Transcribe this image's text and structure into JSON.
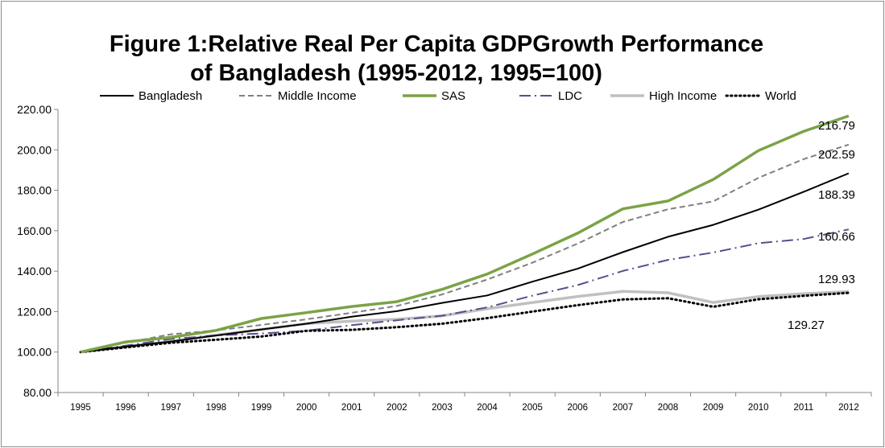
{
  "chart_data": {
    "type": "line",
    "title_lines": [
      "Figure 1:Relative Real Per Capita GDPGrowth Performance",
      "of Bangladesh (1995-2012, 1995=100)"
    ],
    "categories": [
      "1995",
      "1996",
      "1997",
      "1998",
      "1999",
      "2000",
      "2001",
      "2002",
      "2003",
      "2004",
      "2005",
      "2006",
      "2007",
      "2008",
      "2009",
      "2010",
      "2011",
      "2012"
    ],
    "ylim": [
      80,
      220
    ],
    "yticks": [
      "80.00",
      "100.00",
      "120.00",
      "140.00",
      "160.00",
      "180.00",
      "200.00",
      "220.00"
    ],
    "legend_position": "top",
    "grid": false,
    "series": [
      {
        "name": "Bangladesh",
        "color": "#000000",
        "style": "solid",
        "values": [
          100,
          102.7,
          105.2,
          108.2,
          111.2,
          114.0,
          117.5,
          120.2,
          124.3,
          128.0,
          134.8,
          141.2,
          149.4,
          157.0,
          162.9,
          170.4,
          179.2,
          188.39
        ]
      },
      {
        "name": "Middle Income",
        "color": "#808080",
        "style": "dash",
        "values": [
          100,
          104.6,
          108.8,
          110.7,
          113.4,
          116.2,
          119.4,
          122.8,
          128.5,
          135.9,
          144.2,
          153.6,
          164.3,
          170.6,
          174.5,
          186.1,
          195.4,
          202.59
        ]
      },
      {
        "name": "SAS",
        "color": "#7ba346",
        "style": "thick",
        "values": [
          100,
          105.0,
          107.3,
          110.7,
          116.6,
          119.5,
          122.5,
          124.9,
          131.0,
          138.6,
          148.5,
          158.8,
          170.8,
          174.7,
          185.3,
          199.6,
          209.1,
          216.79
        ]
      },
      {
        "name": "LDC",
        "color": "#5f4b8b",
        "style": "dashdot",
        "values": [
          100,
          103.2,
          106.5,
          108.2,
          109.2,
          110.6,
          113.3,
          115.7,
          118.0,
          122.1,
          127.9,
          133.1,
          140.1,
          145.6,
          149.2,
          153.8,
          155.9,
          160.66
        ]
      },
      {
        "name": "High Income",
        "color": "#c0c0c0",
        "style": "gray",
        "values": [
          100,
          102.7,
          105.3,
          108.4,
          111.2,
          114.1,
          115.3,
          116.2,
          117.9,
          121.4,
          124.5,
          127.5,
          130.0,
          129.3,
          124.5,
          127.4,
          128.8,
          129.93
        ]
      },
      {
        "name": "World",
        "color": "#000000",
        "style": "dot",
        "values": [
          100,
          102.3,
          104.6,
          106.1,
          107.7,
          110.5,
          111.0,
          112.3,
          114.0,
          116.8,
          120.0,
          123.2,
          126.0,
          126.6,
          122.4,
          126.1,
          127.8,
          129.27
        ]
      }
    ],
    "end_labels": [
      "216.79",
      "202.59",
      "188.39",
      "160.66",
      "129.93",
      "129.27"
    ]
  }
}
